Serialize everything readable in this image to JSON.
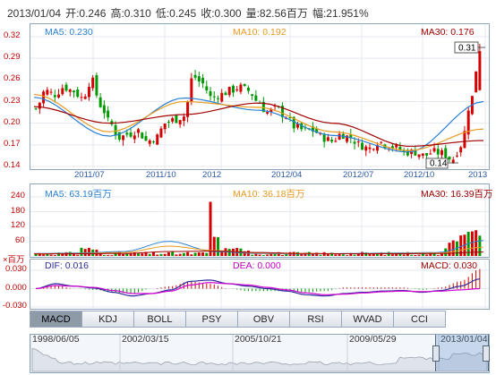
{
  "header": {
    "date": "2013/01/04",
    "open": "开:0.246",
    "high": "高:0.310",
    "low": "低:0.245",
    "close": "收:0.300",
    "volume": "量:82.56百万",
    "change": "幅:21.951%"
  },
  "price_panel": {
    "ma5": "MA5: 0.230",
    "ma10": "MA10: 0.192",
    "ma30": "MA30: 0.176",
    "y_ticks": [
      "0.32",
      "0.29",
      "0.26",
      "0.23",
      "0.20",
      "0.17",
      "0.14"
    ],
    "x_ticks": [
      "2011/07",
      "2011/10",
      "2012",
      "2012/04",
      "2012/07",
      "2012/10",
      "2013"
    ],
    "high_marker": "0.31",
    "low_marker": "0.14"
  },
  "volume_panel": {
    "ma5": "MA5: 63.19百万",
    "ma10": "MA10: 36.18百万",
    "ma30": "MA30: 16.39百万",
    "y_ticks": [
      "240",
      "180",
      "120",
      "60"
    ],
    "unit_label": "×百万"
  },
  "macd_panel": {
    "dif": "DIF: 0.016",
    "dea": "DEA: 0.000",
    "macd": "MACD: 0.030",
    "y_ticks": [
      "0.030",
      "0.000",
      "-0.030"
    ]
  },
  "tabs": [
    "MACD",
    "KDJ",
    "BOLL",
    "PSY",
    "OBV",
    "RSI",
    "WVAD",
    "CCI"
  ],
  "active_tab": "MACD",
  "navigator": {
    "labels": [
      "1998/06/05",
      "2002/03/15",
      "2005/10/21",
      "2009/05/29",
      "2013/01/04"
    ]
  },
  "colors": {
    "up": "#d40000",
    "down": "#009a00",
    "ma5": "#2a7fd4",
    "ma10": "#e89a20",
    "ma30": "#a00000",
    "axis_text": "#c00000",
    "date_text": "#2a5aa0"
  },
  "chart_data": [
    {
      "type": "candlestick",
      "title": "",
      "series": [
        {
          "name": "MA5",
          "x": [
            "2011/07",
            "2011/10",
            "2012",
            "2012/04",
            "2012/07",
            "2012/10",
            "2013"
          ],
          "values": [
            0.236,
            0.182,
            0.235,
            0.218,
            0.183,
            0.16,
            0.23
          ]
        },
        {
          "name": "MA10",
          "x": [
            "2011/07",
            "2011/10",
            "2012",
            "2012/04",
            "2012/07",
            "2012/10",
            "2013"
          ],
          "values": [
            0.24,
            0.188,
            0.23,
            0.222,
            0.188,
            0.162,
            0.192
          ]
        },
        {
          "name": "MA30",
          "x": [
            "2011/07",
            "2011/10",
            "2012",
            "2012/04",
            "2012/07",
            "2012/10",
            "2013"
          ],
          "values": [
            0.223,
            0.2,
            0.212,
            0.228,
            0.2,
            0.168,
            0.176
          ]
        }
      ],
      "last_bar": {
        "date": "2013/01/04",
        "open": 0.246,
        "high": 0.31,
        "low": 0.245,
        "close": 0.3
      },
      "ylim": [
        0.14,
        0.32
      ]
    },
    {
      "type": "bar",
      "title": "",
      "series": [
        {
          "name": "MA5",
          "values": [
            63.19
          ]
        },
        {
          "name": "MA10",
          "values": [
            36.18
          ]
        },
        {
          "name": "MA30",
          "values": [
            16.39
          ]
        }
      ],
      "last_volume": 82.56,
      "ylim": [
        0,
        240
      ]
    },
    {
      "type": "line",
      "title": "",
      "series": [
        {
          "name": "DIF",
          "values": [
            0.016
          ]
        },
        {
          "name": "DEA",
          "values": [
            0.0
          ]
        },
        {
          "name": "MACD",
          "values": [
            0.03
          ]
        }
      ],
      "ylim": [
        -0.03,
        0.03
      ]
    }
  ]
}
